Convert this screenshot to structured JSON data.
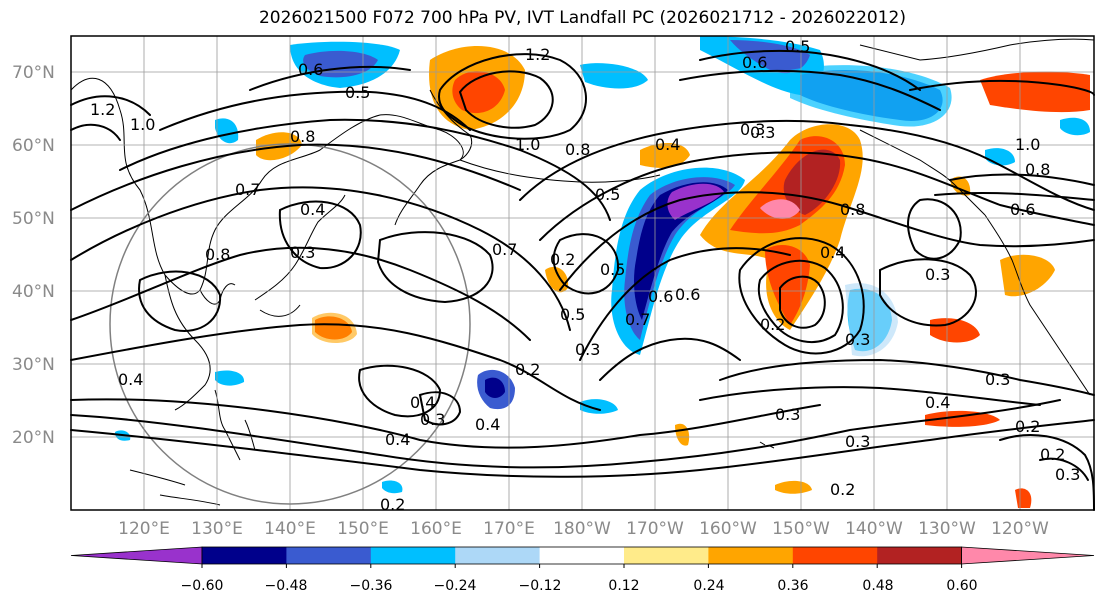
{
  "title": "2026021500 F072 700 hPa PV, IVT Landfall PC (2026021712 - 2026022012)",
  "map": {
    "projection": "Plate Carree",
    "lon_range": [
      110,
      -115
    ],
    "lat_range": [
      10,
      75
    ],
    "lat_labels": [
      "70°N",
      "60°N",
      "50°N",
      "40°N",
      "30°N",
      "20°N"
    ],
    "lon_labels": [
      "120°E",
      "130°E",
      "140°E",
      "150°E",
      "160°E",
      "170°E",
      "180°W",
      "170°W",
      "160°W",
      "150°W",
      "140°W",
      "130°W",
      "120°W"
    ]
  },
  "contour_labels": [
    "1.2",
    "1.0",
    "0.6",
    "0.5",
    "0.8",
    "0.7",
    "0.4",
    "0.3",
    "0.8",
    "0.4",
    "0.3",
    "1.2",
    "1.0",
    "0.8",
    "0.7",
    "0.5",
    "0.4",
    "0.3",
    "0.2",
    "0.5",
    "0.6",
    "0.7",
    "0.2",
    "0.3",
    "0.4",
    "0.4",
    "0.2",
    "0.5",
    "0.6",
    "0.3",
    "0.8",
    "0.4",
    "0.2",
    "0.3",
    "0.3",
    "0.4",
    "0.2",
    "0.3",
    "0.2",
    "0.3",
    "0.5",
    "0.6",
    "1.0",
    "0.8",
    "0.6",
    "0.3",
    "0.4",
    "0.2",
    "0.3"
  ],
  "colorbar": {
    "ticks": [
      "−0.60",
      "−0.48",
      "−0.36",
      "−0.24",
      "−0.12",
      "0.12",
      "0.24",
      "0.36",
      "0.48",
      "0.60"
    ],
    "colors": [
      "#9932cc",
      "#00008b",
      "#3a5bd0",
      "#00bfff",
      "#add8f7",
      "#ffffff",
      "#ffeb8a",
      "#ffa500",
      "#ff4500",
      "#b22222",
      "#ff88aa"
    ]
  }
}
